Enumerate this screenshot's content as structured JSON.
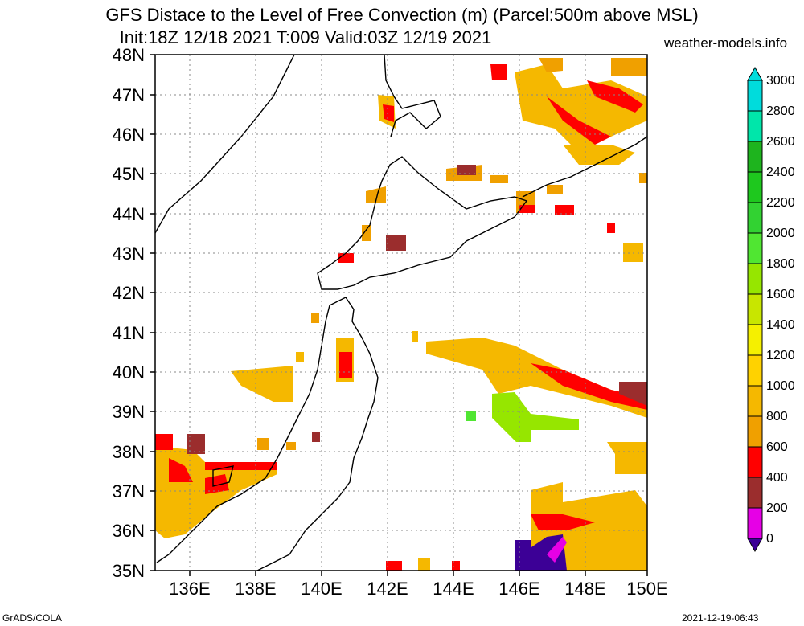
{
  "title_line1": "GFS Distace to the Level of Free Convection (m) (Parcel:500m above MSL)",
  "title_line2": "Init:18Z 12/18 2021 T:009 Valid:03Z 12/19 2021",
  "site": "weather-models.info",
  "footer_left": "GrADS/COLA",
  "footer_right": "2021-12-19-06:43",
  "lat_labels": [
    "48N",
    "47N",
    "46N",
    "45N",
    "44N",
    "43N",
    "42N",
    "41N",
    "40N",
    "39N",
    "38N",
    "37N",
    "36N",
    "35N"
  ],
  "lon_labels": [
    "136E",
    "138E",
    "140E",
    "142E",
    "144E",
    "146E",
    "148E",
    "150E"
  ],
  "colorbar_labels": [
    "3000",
    "2800",
    "2600",
    "2400",
    "2200",
    "2000",
    "1800",
    "1600",
    "1400",
    "1200",
    "1000",
    "800",
    "600",
    "400",
    "200",
    "0"
  ],
  "colors": {
    "c0": "#3c0096",
    "c200": "#e600e6",
    "c400": "#9b2d2d",
    "c600": "#ff0000",
    "c800": "#f0a000",
    "c1000": "#f5b800",
    "c1200": "#ffd200",
    "c1400": "#f5f000",
    "c1600": "#c8e600",
    "c1800": "#96e600",
    "c2000": "#50e632",
    "c2200": "#32d232",
    "c2400": "#1ec81e",
    "c2600": "#1eb41e",
    "c2800": "#00e6aa",
    "c3000": "#00dcdc"
  }
}
